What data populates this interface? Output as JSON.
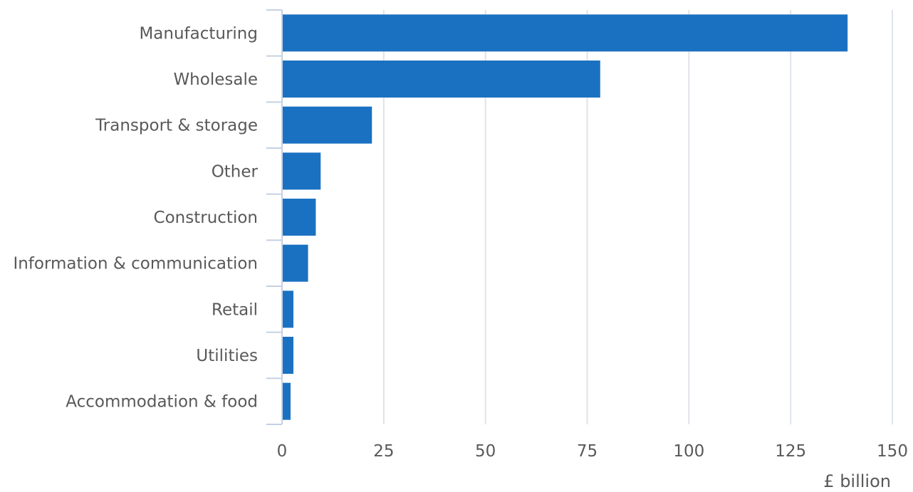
{
  "chart_data": {
    "type": "bar",
    "orientation": "horizontal",
    "categories": [
      "Manufacturing",
      "Wholesale",
      "Transport & storage",
      "Other",
      "Construction",
      "Information & communication",
      "Retail",
      "Utilities",
      "Accommodation & food"
    ],
    "values": [
      139,
      78.2,
      22.1,
      9.5,
      8.3,
      6.4,
      2.8,
      2.8,
      2.1
    ],
    "x_ticks": [
      0,
      25,
      50,
      75,
      100,
      125,
      150
    ],
    "xlim": [
      0,
      150
    ],
    "xlabel": "£ billion",
    "grid": true,
    "legend": "none",
    "bar_color": "#1b71c1"
  }
}
